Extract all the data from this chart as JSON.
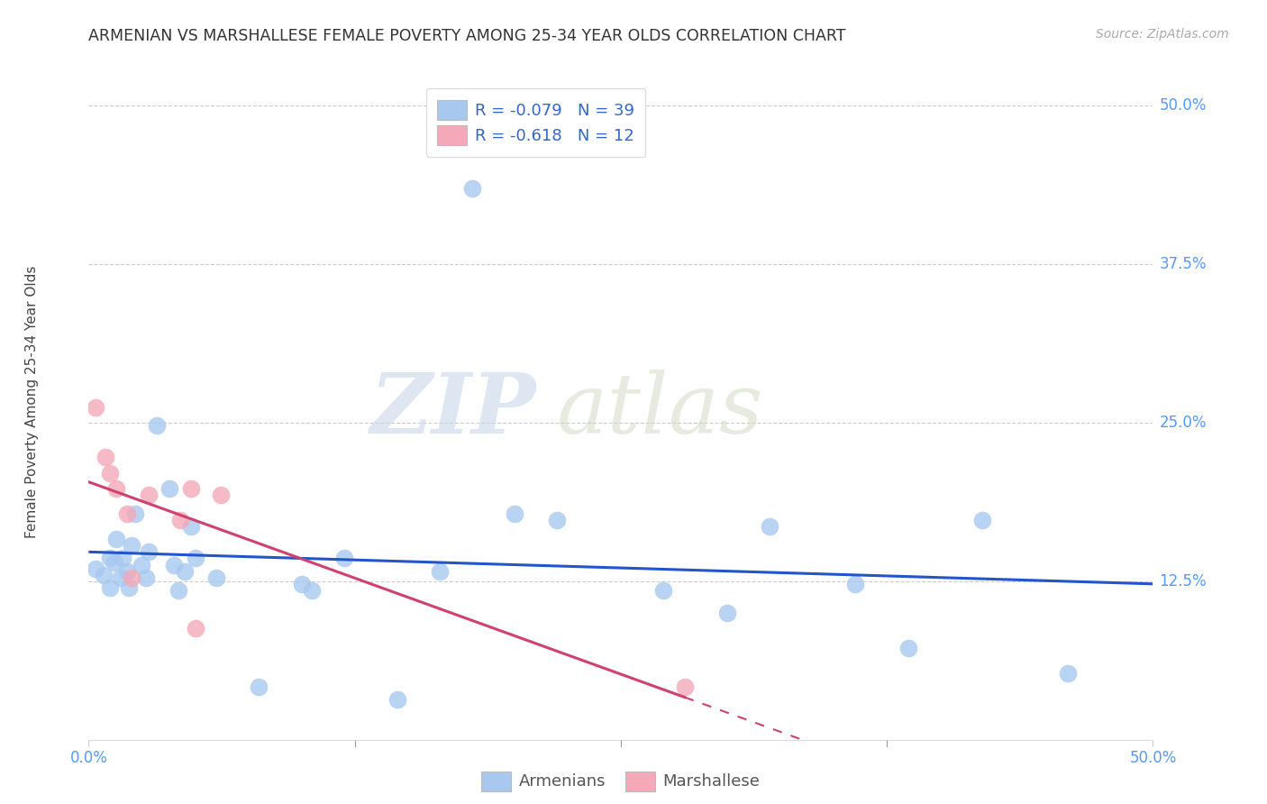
{
  "title": "ARMENIAN VS MARSHALLESE FEMALE POVERTY AMONG 25-34 YEAR OLDS CORRELATION CHART",
  "source": "Source: ZipAtlas.com",
  "ylabel": "Female Poverty Among 25-34 Year Olds",
  "xlim": [
    0.0,
    0.5
  ],
  "ylim": [
    0.0,
    0.52
  ],
  "armenian_R": "-0.079",
  "armenian_N": "39",
  "marshallese_R": "-0.618",
  "marshallese_N": "12",
  "armenian_color": "#a8c8f0",
  "marshallese_color": "#f4a8b8",
  "armenian_line_color": "#2255cc",
  "marshallese_line_color": "#d04070",
  "watermark_zip": "ZIP",
  "watermark_atlas": "atlas",
  "grid_color": "#cccccc",
  "tick_color": "#5599ff",
  "ytick_vals": [
    0.125,
    0.25,
    0.375,
    0.5
  ],
  "ytick_labels": [
    "12.5%",
    "25.0%",
    "37.5%",
    "50.0%"
  ],
  "xtick_vals": [
    0.0,
    0.5
  ],
  "xtick_labels": [
    "0.0%",
    "50.0%"
  ],
  "armenians_x": [
    0.003,
    0.007,
    0.01,
    0.01,
    0.012,
    0.013,
    0.015,
    0.016,
    0.018,
    0.019,
    0.02,
    0.022,
    0.025,
    0.027,
    0.028,
    0.032,
    0.038,
    0.04,
    0.042,
    0.045,
    0.048,
    0.05,
    0.06,
    0.08,
    0.1,
    0.105,
    0.12,
    0.145,
    0.165,
    0.18,
    0.2,
    0.22,
    0.27,
    0.3,
    0.32,
    0.36,
    0.385,
    0.42,
    0.46
  ],
  "armenians_y": [
    0.135,
    0.13,
    0.143,
    0.12,
    0.14,
    0.158,
    0.128,
    0.143,
    0.133,
    0.12,
    0.153,
    0.178,
    0.138,
    0.128,
    0.148,
    0.248,
    0.198,
    0.138,
    0.118,
    0.133,
    0.168,
    0.143,
    0.128,
    0.042,
    0.123,
    0.118,
    0.143,
    0.032,
    0.133,
    0.435,
    0.178,
    0.173,
    0.118,
    0.1,
    0.168,
    0.123,
    0.072,
    0.173,
    0.052
  ],
  "marshallese_x": [
    0.003,
    0.008,
    0.01,
    0.013,
    0.018,
    0.02,
    0.028,
    0.043,
    0.048,
    0.05,
    0.062,
    0.28
  ],
  "marshallese_y": [
    0.262,
    0.223,
    0.21,
    0.198,
    0.178,
    0.128,
    0.193,
    0.173,
    0.198,
    0.088,
    0.193,
    0.042
  ]
}
